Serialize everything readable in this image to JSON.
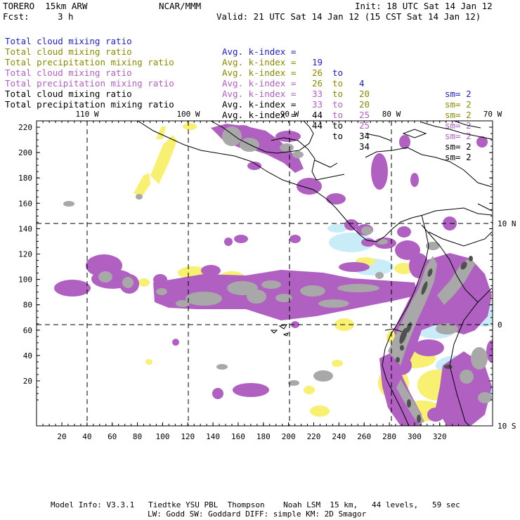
{
  "header": {
    "model": "TORERO  15km ARW",
    "org": "NCAR/MMM",
    "init": "Init: 18 UTC Sat 14 Jan 12",
    "fcst_label": "Fcst:",
    "fcst_value": "3 h",
    "valid": "Valid: 21 UTC Sat 14 Jan 12 (15 CST Sat 14 Jan 12)"
  },
  "legend": [
    {
      "field": "Total cloud mixing ratio",
      "stat": "Avg. k-index =",
      "from": "19",
      "to_word": "to",
      "to": "4",
      "sm": "sm= 2",
      "color": "#2020d0"
    },
    {
      "field": "Total cloud mixing ratio",
      "stat": "Avg. k-index =",
      "from": "26",
      "to_word": "to",
      "to": "20",
      "sm": "sm= 2",
      "color": "#8a8a00"
    },
    {
      "field": "Total precipitation mixing ratio",
      "stat": "Avg. k-index =",
      "from": "26",
      "to_word": "to",
      "to": "20",
      "sm": "sm= 2",
      "color": "#8a8a00"
    },
    {
      "field": "Total cloud mixing ratio",
      "stat": "Avg. k-index =",
      "from": "33",
      "to_word": "to",
      "to": "25",
      "sm": "sm= 2",
      "color": "#b060c0"
    },
    {
      "field": "Total precipitation mixing ratio",
      "stat": "Avg. k-index =",
      "from": "33",
      "to_word": "to",
      "to": "25",
      "sm": "sm= 2",
      "color": "#b060c0"
    },
    {
      "field": "Total cloud mixing ratio",
      "stat": "Avg. k-index =",
      "from": "44",
      "to_word": "to",
      "to": "34",
      "sm": "sm= 2",
      "color": "#000000"
    },
    {
      "field": "Total precipitation mixing ratio",
      "stat": "Avg. k-index =",
      "from": "44",
      "to_word": "to",
      "to": "34",
      "sm": "sm= 2",
      "color": "#000000"
    }
  ],
  "axes": {
    "x_grid_ticks": [
      "20",
      "40",
      "60",
      "80",
      "100",
      "120",
      "140",
      "160",
      "180",
      "200",
      "220",
      "240",
      "260",
      "280",
      "300",
      "320"
    ],
    "y_grid_ticks": [
      "20",
      "40",
      "60",
      "80",
      "100",
      "120",
      "140",
      "160",
      "180",
      "200",
      "220"
    ],
    "lon_labels": [
      "110 W",
      "100 W",
      "90 W",
      "80 W",
      "70 W"
    ],
    "lat_labels": [
      "10 N",
      "0",
      "10 S"
    ]
  },
  "colors": {
    "light_blue": "#c8ecf8",
    "yellow": "#f8f070",
    "purple": "#b060c0",
    "gray": "#a8a8a8",
    "dark_gray": "#505050"
  },
  "footer": {
    "line1": "Model Info: V3.3.1   Tiedtke YSU PBL  Thompson    Noah LSM  15 km,   44 levels,   59 sec",
    "line2": "LW: Godd SW: Goddard DIFF: simple KM: 2D Smagor"
  }
}
